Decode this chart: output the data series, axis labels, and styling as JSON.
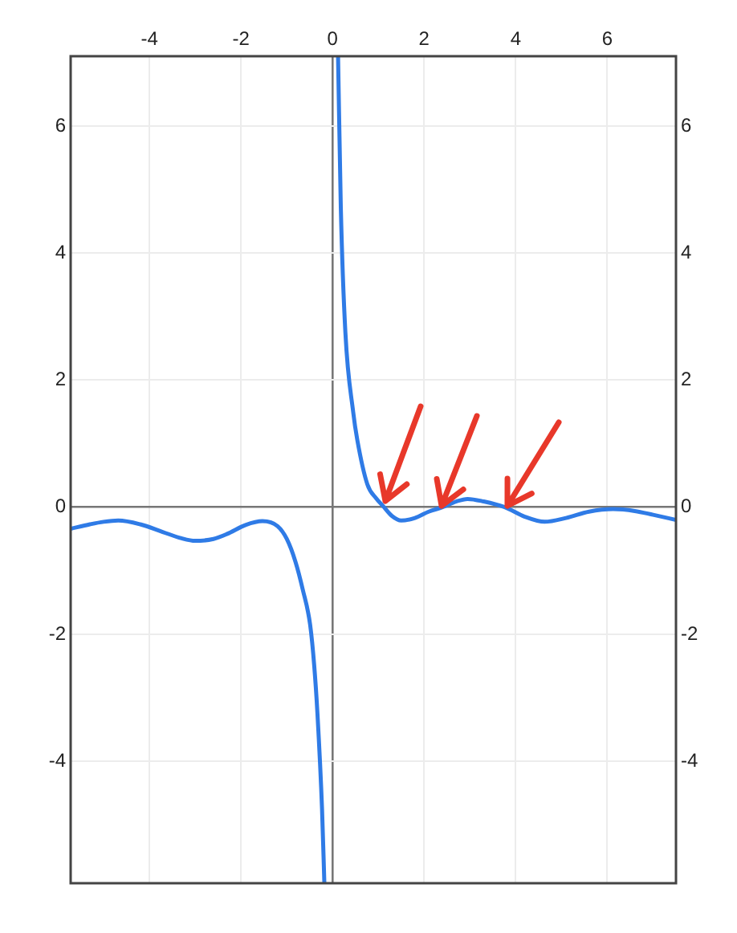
{
  "chart_data": {
    "type": "line",
    "xlim": [
      -5.72,
      7.5
    ],
    "xticks": [
      -4,
      -2,
      0,
      2,
      4,
      6
    ],
    "ylim": [
      -5.92,
      7.1
    ],
    "yticks": [
      -4,
      -2,
      0,
      2,
      4,
      6
    ],
    "y2lim": [
      -5.92,
      7.1
    ],
    "y2ticks": [
      -4,
      -2,
      0,
      2,
      4,
      6
    ],
    "grid": true,
    "legend": false,
    "marker": "none",
    "line_style": "solid",
    "series": [
      {
        "color": "#2f7be6",
        "x": [
          -5.72,
          -5.3,
          -5.0,
          -4.68,
          -4.2,
          -3.71,
          -3.3,
          -3.0,
          -2.6,
          -2.3,
          -1.9,
          -1.53,
          -1.2,
          -1.0,
          -0.81,
          -0.65,
          -0.49,
          -0.4,
          -0.33,
          -0.23,
          -0.18,
          0,
          0.12,
          0.18,
          0.28,
          0.45,
          0.54,
          0.76,
          0.95,
          1.1,
          1.3,
          1.5,
          1.8,
          2.1,
          2.4,
          2.7,
          2.95,
          3.3,
          3.76,
          4.2,
          4.63,
          5.1,
          5.6,
          6.13,
          6.6,
          7.0,
          7.5
        ],
        "values": [
          -0.34,
          -0.27,
          -0.23,
          -0.21,
          -0.27,
          -0.39,
          -0.49,
          -0.53,
          -0.5,
          -0.42,
          -0.28,
          -0.22,
          -0.3,
          -0.5,
          -0.86,
          -1.3,
          -1.85,
          -2.5,
          -3.25,
          -4.75,
          -5.9,
          null,
          7.1,
          4.72,
          2.75,
          1.5,
          1.06,
          0.36,
          0.14,
          0.02,
          -0.14,
          -0.21,
          -0.17,
          -0.07,
          0,
          0.09,
          0.13,
          0.09,
          0,
          -0.15,
          -0.23,
          -0.17,
          -0.07,
          -0.03,
          -0.06,
          -0.12,
          -0.2
        ]
      }
    ]
  }
}
